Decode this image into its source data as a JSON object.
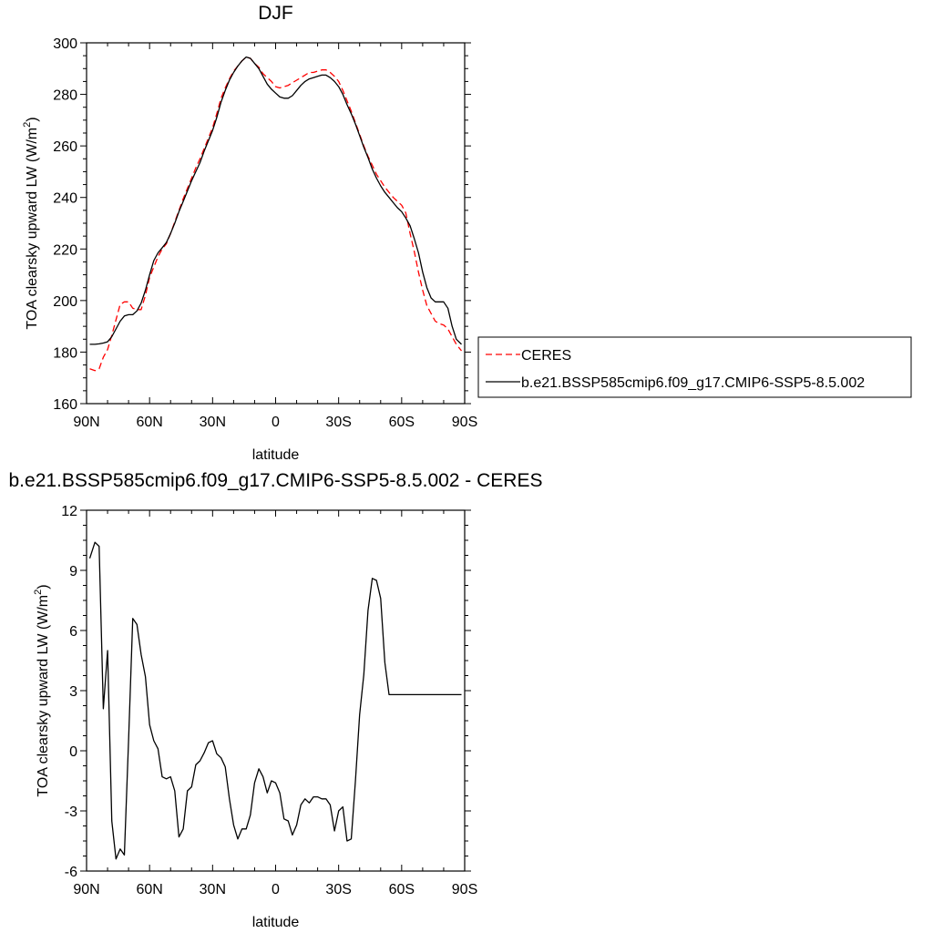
{
  "chart_data": [
    {
      "type": "line",
      "title": "DJF",
      "xlabel": "latitude",
      "ylabel_main": "TOA clearsky upward LW (W/m",
      "ylabel_sup": "2",
      "ylabel_tail": ")",
      "xlim": [
        -90,
        90
      ],
      "ylim": [
        160,
        300
      ],
      "xticks": [
        -90,
        -60,
        -30,
        0,
        30,
        60,
        90
      ],
      "xticklabels": [
        "90N",
        "60N",
        "30N",
        "0",
        "30S",
        "60S",
        "90S"
      ],
      "yticks": [
        160,
        180,
        200,
        220,
        240,
        260,
        280,
        300
      ],
      "yticklabels": [
        "160",
        "180",
        "200",
        "220",
        "240",
        "260",
        "280",
        "300"
      ],
      "legend_position": "right",
      "series": [
        {
          "name": "CERES",
          "color": "#ff0000",
          "dash": true,
          "x": [
            -88.5,
            -86,
            -84,
            -82,
            -80,
            -78,
            -76,
            -74,
            -72,
            -70,
            -68,
            -66,
            -64,
            -62,
            -60,
            -58,
            -56,
            -54,
            -52,
            -50,
            -48,
            -46,
            -44,
            -42,
            -40,
            -38,
            -36,
            -34,
            -32,
            -30,
            -28,
            -26,
            -24,
            -22,
            -20,
            -18,
            -16,
            -14,
            -12,
            -10,
            -8,
            -6,
            -4,
            -2,
            0,
            2,
            4,
            6,
            8,
            10,
            12,
            14,
            16,
            18,
            20,
            22,
            24,
            26,
            28,
            30,
            32,
            34,
            36,
            38,
            40,
            42,
            44,
            46,
            48,
            50,
            52,
            54,
            56,
            58,
            60,
            62,
            64,
            66,
            68,
            70,
            72,
            74,
            76,
            78,
            80,
            82,
            84,
            86,
            88.5
          ],
          "y": [
            173.5,
            172.8,
            173.5,
            178,
            181,
            186.5,
            192.5,
            198.5,
            199.5,
            199.5,
            197,
            196.5,
            196.5,
            202,
            209,
            213,
            217,
            220,
            222,
            226,
            230.5,
            235,
            239.5,
            243.5,
            247.5,
            251.5,
            255,
            259,
            263,
            267,
            272.5,
            278.5,
            282.5,
            286,
            289,
            291,
            293,
            294.5,
            294,
            292,
            290.5,
            288,
            286.5,
            285,
            283,
            282.5,
            283,
            283.5,
            284.5,
            285.5,
            286.5,
            287.5,
            288.5,
            288.5,
            289,
            289.5,
            289.5,
            288.5,
            287,
            285,
            281.5,
            277.5,
            273.5,
            269,
            264.5,
            260,
            256,
            252.5,
            249,
            246.5,
            244,
            242,
            240,
            238.5,
            237,
            234,
            226,
            219,
            211,
            204,
            198,
            195,
            192,
            191,
            190.5,
            189,
            186,
            183,
            180.5
          ]
        },
        {
          "name": "b.e21.BSSP585cmip6.f09_g17.CMIP6-SSP5-8.5.002",
          "color": "#000000",
          "dash": false,
          "x": [
            -88.5,
            -86,
            -84,
            -82,
            -80,
            -78,
            -76,
            -74,
            -72,
            -70,
            -68,
            -66,
            -64,
            -62,
            -60,
            -58,
            -56,
            -54,
            -52,
            -50,
            -48,
            -46,
            -44,
            -42,
            -40,
            -38,
            -36,
            -34,
            -32,
            -30,
            -28,
            -26,
            -24,
            -22,
            -20,
            -18,
            -16,
            -14,
            -12,
            -10,
            -8,
            -6,
            -4,
            -2,
            0,
            2,
            4,
            6,
            8,
            10,
            12,
            14,
            16,
            18,
            20,
            22,
            24,
            26,
            28,
            30,
            32,
            34,
            36,
            38,
            40,
            42,
            44,
            46,
            48,
            50,
            52,
            54,
            56,
            58,
            60,
            62,
            64,
            66,
            68,
            70,
            72,
            74,
            76,
            78,
            80,
            82,
            84,
            86,
            88.5
          ],
          "y": [
            183,
            183,
            183.2,
            183.5,
            184,
            186,
            189,
            192,
            194,
            194.5,
            194.5,
            196,
            199,
            204,
            210,
            215.5,
            218.5,
            220.5,
            222.5,
            226,
            230,
            234.5,
            238.5,
            242.5,
            246.5,
            250,
            253.5,
            258,
            262,
            266,
            271,
            277,
            281.5,
            285.5,
            288.5,
            291,
            293,
            294.5,
            294,
            292,
            290,
            287,
            284,
            282,
            280.5,
            279,
            278.5,
            278.5,
            279.5,
            281.5,
            283.5,
            285,
            286,
            286.5,
            287,
            287.5,
            287.5,
            286.5,
            285,
            283,
            280,
            276,
            272.5,
            268.5,
            264,
            259.5,
            255.5,
            251,
            247.5,
            244.5,
            242,
            240,
            238,
            236,
            234.5,
            232,
            229,
            224,
            218.5,
            211,
            205,
            201,
            199.5,
            199.5,
            199.5,
            197,
            190,
            185,
            183
          ]
        }
      ]
    },
    {
      "type": "line",
      "title": "b.e21.BSSP585cmip6.f09_g17.CMIP6-SSP5-8.5.002 - CERES",
      "xlabel": "latitude",
      "ylabel_main": "TOA clearsky upward LW (W/m",
      "ylabel_sup": "2",
      "ylabel_tail": ")",
      "xlim": [
        -90,
        90
      ],
      "ylim": [
        -6,
        12
      ],
      "xticks": [
        -90,
        -60,
        -30,
        0,
        30,
        60,
        90
      ],
      "xticklabels": [
        "90N",
        "60N",
        "30N",
        "0",
        "30S",
        "60S",
        "90S"
      ],
      "yticks": [
        -6,
        -3,
        0,
        3,
        6,
        9,
        12
      ],
      "yticklabels": [
        "-6",
        "-3",
        "0",
        "3",
        "6",
        "9",
        "12"
      ],
      "series": [
        {
          "color": "#000000",
          "dash": false,
          "x": [
            -88.5,
            -86,
            -84,
            -82,
            -80,
            -78,
            -76,
            -74,
            -72,
            -70,
            -68,
            -66,
            -64,
            -62,
            -60,
            -58,
            -56,
            -54,
            -52,
            -50,
            -48,
            -46,
            -44,
            -42,
            -40,
            -38,
            -36,
            -34,
            -32,
            -30,
            -28,
            -26,
            -24,
            -22,
            -20,
            -18,
            -16,
            -14,
            -12,
            -10,
            -8,
            -6,
            -4,
            -2,
            0,
            2,
            4,
            6,
            8,
            10,
            12,
            14,
            16,
            18,
            20,
            22,
            24,
            26,
            28,
            30,
            32,
            34,
            36,
            38,
            40,
            42,
            44,
            46,
            48,
            50,
            52,
            54,
            56,
            58,
            60,
            62,
            64,
            66,
            68,
            70,
            72,
            74,
            76,
            78,
            80,
            82,
            84,
            86,
            88.5
          ],
          "y": [
            9.6,
            10.4,
            10.2,
            2.1,
            5.0,
            -3.5,
            -5.4,
            -4.9,
            -5.2,
            0.5,
            6.6,
            6.3,
            4.8,
            3.7,
            1.3,
            0.5,
            0.1,
            -1.3,
            -1.4,
            -1.3,
            -2.0,
            -4.3,
            -3.9,
            -2.0,
            -1.8,
            -0.7,
            -0.5,
            -0.1,
            0.4,
            0.5,
            -0.15,
            -0.35,
            -0.8,
            -2.4,
            -3.7,
            -4.4,
            -3.9,
            -3.9,
            -3.2,
            -1.6,
            -0.9,
            -1.3,
            -2.1,
            -1.5,
            -1.6,
            -2.1,
            -3.4,
            -3.5,
            -4.2,
            -3.7,
            -2.7,
            -2.4,
            -2.6,
            -2.3,
            -2.3,
            -2.4,
            -2.4,
            -2.7,
            -4.0,
            -3.0,
            -2.8,
            -4.5,
            -4.4,
            -1.5,
            1.8,
            3.8,
            7.0,
            8.6,
            8.5,
            7.6,
            4.4,
            2.8,
            2.8,
            2.8,
            2.8,
            2.8,
            2.8,
            2.8,
            2.8,
            2.8,
            2.8,
            2.8,
            2.8,
            2.8,
            2.8,
            2.8,
            2.8,
            2.8,
            2.8
          ]
        }
      ]
    }
  ]
}
